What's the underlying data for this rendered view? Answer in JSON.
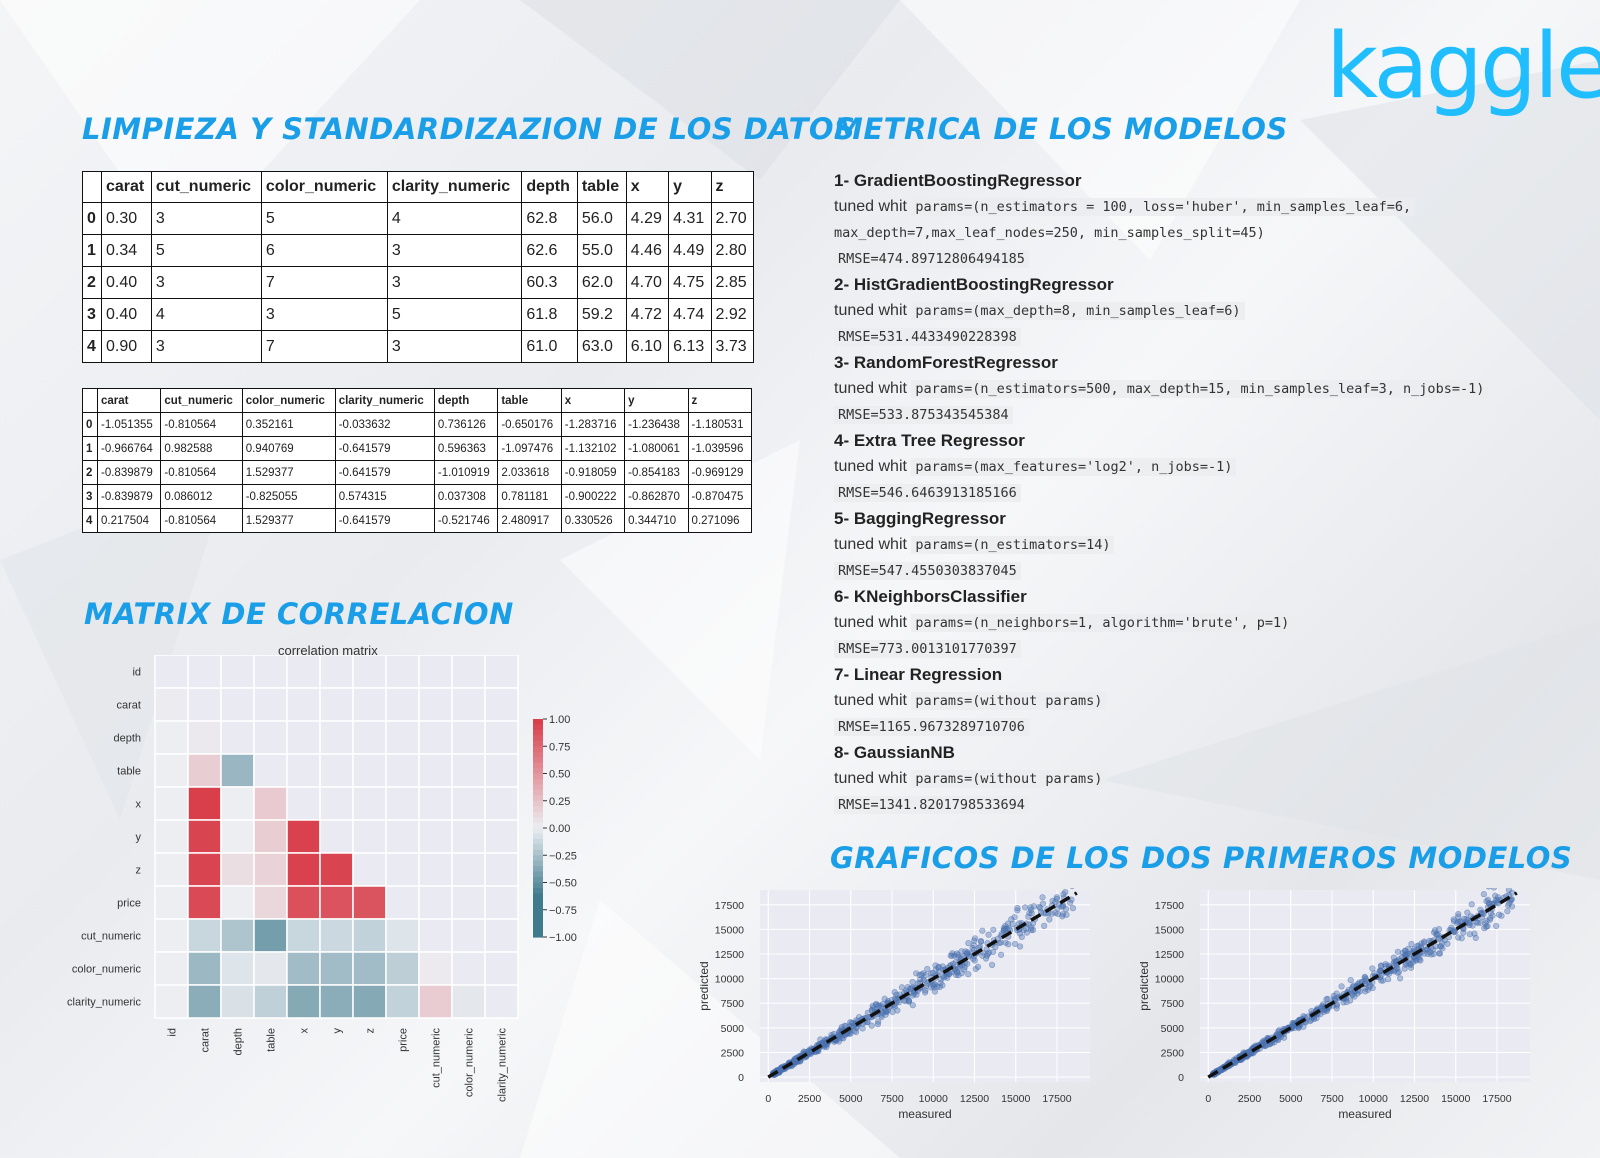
{
  "logo": "kaggle",
  "headings": {
    "cleaning": "LIMPIEZA Y STANDARDIZAZION DE LOS DATOS",
    "metrics": "METRICA DE LOS MODELOS",
    "correlation": "MATRIX DE CORRELACION",
    "charts": "GRAFICOS DE LOS DOS PRIMEROS MODELOS"
  },
  "raw_table": {
    "columns": [
      "",
      "carat",
      "cut_numeric",
      "color_numeric",
      "clarity_numeric",
      "depth",
      "table",
      "x",
      "y",
      "z"
    ],
    "rows": [
      [
        "0",
        "0.30",
        "3",
        "5",
        "4",
        "62.8",
        "56.0",
        "4.29",
        "4.31",
        "2.70"
      ],
      [
        "1",
        "0.34",
        "5",
        "6",
        "3",
        "62.6",
        "55.0",
        "4.46",
        "4.49",
        "2.80"
      ],
      [
        "2",
        "0.40",
        "3",
        "7",
        "3",
        "60.3",
        "62.0",
        "4.70",
        "4.75",
        "2.85"
      ],
      [
        "3",
        "0.40",
        "4",
        "3",
        "5",
        "61.8",
        "59.2",
        "4.72",
        "4.74",
        "2.92"
      ],
      [
        "4",
        "0.90",
        "3",
        "7",
        "3",
        "61.0",
        "63.0",
        "6.10",
        "6.13",
        "3.73"
      ]
    ]
  },
  "std_table": {
    "columns": [
      "",
      "carat",
      "cut_numeric",
      "color_numeric",
      "clarity_numeric",
      "depth",
      "table",
      "x",
      "y",
      "z"
    ],
    "rows": [
      [
        "0",
        "-1.051355",
        "-0.810564",
        "0.352161",
        "-0.033632",
        "0.736126",
        "-0.650176",
        "-1.283716",
        "-1.236438",
        "-1.180531"
      ],
      [
        "1",
        "-0.966764",
        "0.982588",
        "0.940769",
        "-0.641579",
        "0.596363",
        "-1.097476",
        "-1.132102",
        "-1.080061",
        "-1.039596"
      ],
      [
        "2",
        "-0.839879",
        "-0.810564",
        "1.529377",
        "-0.641579",
        "-1.010919",
        "2.033618",
        "-0.918059",
        "-0.854183",
        "-0.969129"
      ],
      [
        "3",
        "-0.839879",
        "0.086012",
        "-0.825055",
        "0.574315",
        "0.037308",
        "0.781181",
        "-0.900222",
        "-0.862870",
        "-0.870475"
      ],
      [
        "4",
        "0.217504",
        "-0.810564",
        "1.529377",
        "-0.641579",
        "-0.521746",
        "2.480917",
        "0.330526",
        "0.344710",
        "0.271096"
      ]
    ]
  },
  "metrics": {
    "tuned_label": "tuned whit",
    "models": [
      {
        "title": "1- GradientBoostingRegressor",
        "params": [
          "params=(n_estimators = 100, loss='huber', min_samples_leaf=6,",
          "max_depth=7,max_leaf_nodes=250, min_samples_split=45)"
        ],
        "rmse": "RMSE=474.89712806494185"
      },
      {
        "title": "2- HistGradientBoostingRegressor",
        "params": [
          "params=(max_depth=8, min_samples_leaf=6)"
        ],
        "rmse": "RMSE=531.4433490228398"
      },
      {
        "title": "3- RandomForestRegressor",
        "params": [
          "params=(n_estimators=500, max_depth=15, min_samples_leaf=3, n_jobs=-1)"
        ],
        "rmse": "RMSE=533.875343545384"
      },
      {
        "title": "4- Extra Tree Regressor",
        "params": [
          "params=(max_features='log2', n_jobs=-1)"
        ],
        "rmse": "RMSE=546.6463913185166"
      },
      {
        "title": "5- BaggingRegressor",
        "params": [
          "params=(n_estimators=14)"
        ],
        "rmse": "RMSE=547.4550303837045"
      },
      {
        "title": "6- KNeighborsClassifier",
        "params": [
          "params=(n_neighbors=1, algorithm='brute', p=1)"
        ],
        "rmse": "RMSE=773.0013101770397"
      },
      {
        "title": "7- Linear Regression",
        "params": [
          "params=(without params)"
        ],
        "rmse": "RMSE=1165.9673289710706"
      },
      {
        "title": "8- GaussianNB",
        "params": [
          "params=(without params)"
        ],
        "rmse": "RMSE=1341.8201798533694"
      }
    ]
  },
  "chart_data": [
    {
      "type": "heatmap",
      "title": "correlation matrix",
      "labels": [
        "id",
        "carat",
        "depth",
        "table",
        "x",
        "y",
        "z",
        "price",
        "cut_numeric",
        "color_numeric",
        "clarity_numeric"
      ],
      "matrix": [
        [
          0,
          0,
          0,
          0,
          0,
          0,
          0,
          0,
          0,
          0,
          0
        ],
        [
          0.01,
          0,
          0,
          0,
          0,
          0,
          0,
          0,
          0,
          0,
          0
        ],
        [
          0.0,
          0.03,
          0,
          0,
          0,
          0,
          0,
          0,
          0,
          0,
          0
        ],
        [
          0.0,
          0.18,
          -0.3,
          0,
          0,
          0,
          0,
          0,
          0,
          0,
          0
        ],
        [
          0.0,
          0.98,
          0.0,
          0.2,
          0,
          0,
          0,
          0,
          0,
          0,
          0
        ],
        [
          0.0,
          0.95,
          0.0,
          0.18,
          0.97,
          0,
          0,
          0,
          0,
          0,
          0
        ],
        [
          0.0,
          0.95,
          0.09,
          0.15,
          0.97,
          0.95,
          0,
          0,
          0,
          0,
          0
        ],
        [
          0.0,
          0.92,
          0.0,
          0.13,
          0.88,
          0.87,
          0.86,
          0,
          0,
          0,
          0
        ],
        [
          0.0,
          -0.13,
          -0.22,
          -0.43,
          -0.13,
          -0.12,
          -0.15,
          -0.05,
          0,
          0,
          0
        ],
        [
          0.0,
          -0.29,
          -0.05,
          -0.03,
          -0.27,
          -0.27,
          -0.27,
          -0.17,
          0.02,
          0,
          0
        ],
        [
          0.0,
          -0.35,
          -0.07,
          -0.16,
          -0.37,
          -0.35,
          -0.37,
          -0.15,
          0.19,
          -0.03,
          0
        ]
      ],
      "colorbar_ticks": [
        "1.00",
        "0.75",
        "0.50",
        "0.25",
        "0.00",
        "−0.25",
        "−0.50",
        "−0.75",
        "−1.00"
      ],
      "colors": {
        "positive": "#d6323f",
        "negative": "#3f7a8d",
        "neutral": "#eceef2"
      }
    },
    {
      "type": "scatter",
      "xlabel": "measured",
      "ylabel": "predicted",
      "xticks": [
        "0",
        "2500",
        "5000",
        "7500",
        "10000",
        "12500",
        "15000",
        "17500"
      ],
      "yticks": [
        "0",
        "2500",
        "5000",
        "7500",
        "10000",
        "12500",
        "15000",
        "17500"
      ],
      "xlim": [
        -500,
        19500
      ],
      "ylim": [
        -500,
        19000
      ],
      "noise": 0.09,
      "color": "#4c72b0"
    },
    {
      "type": "scatter",
      "xlabel": "measured",
      "ylabel": "predicted",
      "xticks": [
        "0",
        "2500",
        "5000",
        "7500",
        "10000",
        "12500",
        "15000",
        "17500"
      ],
      "yticks": [
        "0",
        "2500",
        "5000",
        "7500",
        "10000",
        "12500",
        "15000",
        "17500"
      ],
      "xlim": [
        -500,
        19500
      ],
      "ylim": [
        -500,
        19000
      ],
      "noise": 0.07,
      "color": "#4c72b0"
    }
  ]
}
